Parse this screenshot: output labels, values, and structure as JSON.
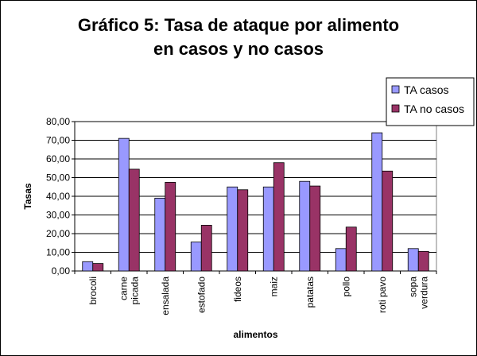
{
  "colors": {
    "ta_casos": "#9999ff",
    "ta_no_casos": "#993366",
    "plot_bg": "#ffffff",
    "grid": "#000000"
  },
  "chart_data": {
    "type": "bar",
    "title": [
      "Gráfico 5: Tasa de ataque por alimento",
      "en casos y no casos"
    ],
    "xlabel": "alimentos",
    "ylabel": "Tasas",
    "ylim": [
      0,
      80
    ],
    "ytick_step": 10,
    "ytick_labels": [
      "0,00",
      "10,00",
      "20,00",
      "30,00",
      "40,00",
      "50,00",
      "60,00",
      "70,00",
      "80,00"
    ],
    "grid": true,
    "legend_position": "top-right",
    "categories": [
      [
        "brocoli"
      ],
      [
        "carne",
        "picada"
      ],
      [
        "ensalada"
      ],
      [
        "estofado"
      ],
      [
        "fideos"
      ],
      [
        "maiz"
      ],
      [
        "patatas"
      ],
      [
        "pollo"
      ],
      [
        "roti pavo"
      ],
      [
        "sopa",
        "verdura"
      ]
    ],
    "series": [
      {
        "name": "TA casos",
        "values": [
          5,
          71,
          39,
          15.5,
          45,
          45,
          48,
          12,
          74,
          12
        ]
      },
      {
        "name": "TA no casos",
        "values": [
          4,
          54.5,
          47.5,
          24.5,
          43.5,
          58,
          45.5,
          23.5,
          53.5,
          10.5
        ]
      }
    ]
  }
}
